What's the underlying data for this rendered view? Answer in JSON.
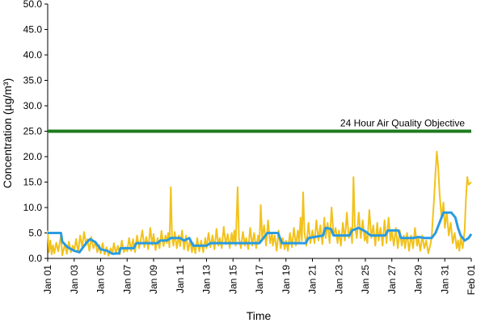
{
  "chart_data": {
    "type": "line",
    "title": "",
    "xlabel": "Time",
    "ylabel": "Concentration (µg/m³)",
    "ylim": [
      0,
      50
    ],
    "yticks": [
      "0.0",
      "5.0",
      "10.0",
      "15.0",
      "20.0",
      "25.0",
      "30.0",
      "35.0",
      "40.0",
      "45.0",
      "50.0"
    ],
    "xlim": [
      "Jan 01",
      "Feb 01"
    ],
    "xticks": [
      "Jan 01",
      "Jan 03",
      "Jan 05",
      "Jan 07",
      "Jan 09",
      "Jan 11",
      "Jan 13",
      "Jan 15",
      "Jan 17",
      "Jan 19",
      "Jan 21",
      "Jan 23",
      "Jan 25",
      "Jan 27",
      "Jan 29",
      "Jan 31",
      "Feb 01"
    ],
    "grid": false,
    "colors": {
      "hourly": "#f2c21b",
      "daily": "#2a9be0",
      "objective": "#1e7a1e"
    },
    "objective": {
      "label": "24 Hour Air Quality Objective",
      "value": 25
    },
    "series": [
      {
        "key": "hourly",
        "points": [
          [
            0,
            5.5
          ],
          [
            0.1,
            1.2
          ],
          [
            0.2,
            3.5
          ],
          [
            0.3,
            0.8
          ],
          [
            0.4,
            2.6
          ],
          [
            0.5,
            1.0
          ],
          [
            0.65,
            3.1
          ],
          [
            0.8,
            1.4
          ],
          [
            1.0,
            4.5
          ],
          [
            1.1,
            0.6
          ],
          [
            1.3,
            2.8
          ],
          [
            1.45,
            0.9
          ],
          [
            1.6,
            3.3
          ],
          [
            1.75,
            1.2
          ],
          [
            1.9,
            2.5
          ],
          [
            2.0,
            1.5
          ],
          [
            2.15,
            3.8
          ],
          [
            2.3,
            1.2
          ],
          [
            2.45,
            4.5
          ],
          [
            2.6,
            2.2
          ],
          [
            2.75,
            5.2
          ],
          [
            2.9,
            2.6
          ],
          [
            3.0,
            3.8
          ],
          [
            3.15,
            1.5
          ],
          [
            3.3,
            4.2
          ],
          [
            3.45,
            2.0
          ],
          [
            3.6,
            3.2
          ],
          [
            3.75,
            1.2
          ],
          [
            3.9,
            2.6
          ],
          [
            4.0,
            1.0
          ],
          [
            4.15,
            3.0
          ],
          [
            4.3,
            0.8
          ],
          [
            4.45,
            2.2
          ],
          [
            4.6,
            0.5
          ],
          [
            4.75,
            2.0
          ],
          [
            4.9,
            1.2
          ],
          [
            5.0,
            3.0
          ],
          [
            5.15,
            1.0
          ],
          [
            5.3,
            2.5
          ],
          [
            5.45,
            0.8
          ],
          [
            5.6,
            3.5
          ],
          [
            5.75,
            1.2
          ],
          [
            5.9,
            2.2
          ],
          [
            6.0,
            1.4
          ],
          [
            6.15,
            4.0
          ],
          [
            6.3,
            1.5
          ],
          [
            6.45,
            3.8
          ],
          [
            6.6,
            1.2
          ],
          [
            6.75,
            4.5
          ],
          [
            6.9,
            2.0
          ],
          [
            7.0,
            3.2
          ],
          [
            7.15,
            5.5
          ],
          [
            7.3,
            2.2
          ],
          [
            7.45,
            4.2
          ],
          [
            7.6,
            1.8
          ],
          [
            7.75,
            6.0
          ],
          [
            7.9,
            2.6
          ],
          [
            8.0,
            4.8
          ],
          [
            8.15,
            1.6
          ],
          [
            8.3,
            4.0
          ],
          [
            8.45,
            2.0
          ],
          [
            8.6,
            5.4
          ],
          [
            8.75,
            2.4
          ],
          [
            8.9,
            4.5
          ],
          [
            9.0,
            3.0
          ],
          [
            9.1,
            5.0
          ],
          [
            9.2,
            2.2
          ],
          [
            9.3,
            14.0
          ],
          [
            9.4,
            4.0
          ],
          [
            9.5,
            2.5
          ],
          [
            9.6,
            5.2
          ],
          [
            9.75,
            2.0
          ],
          [
            9.9,
            4.5
          ],
          [
            10.0,
            2.4
          ],
          [
            10.15,
            5.5
          ],
          [
            10.3,
            1.8
          ],
          [
            10.45,
            4.5
          ],
          [
            10.6,
            1.5
          ],
          [
            10.75,
            3.6
          ],
          [
            10.9,
            1.2
          ],
          [
            11.0,
            3.0
          ],
          [
            11.15,
            1.0
          ],
          [
            11.3,
            4.0
          ],
          [
            11.45,
            1.4
          ],
          [
            11.6,
            3.5
          ],
          [
            11.75,
            1.2
          ],
          [
            11.9,
            4.0
          ],
          [
            12.0,
            2.0
          ],
          [
            12.15,
            5.0
          ],
          [
            12.3,
            2.2
          ],
          [
            12.45,
            4.5
          ],
          [
            12.6,
            1.8
          ],
          [
            12.75,
            5.8
          ],
          [
            12.9,
            2.5
          ],
          [
            13.0,
            4.0
          ],
          [
            13.15,
            2.0
          ],
          [
            13.3,
            6.2
          ],
          [
            13.45,
            2.8
          ],
          [
            13.6,
            4.8
          ],
          [
            13.75,
            2.0
          ],
          [
            13.9,
            5.0
          ],
          [
            14.0,
            3.0
          ],
          [
            14.1,
            5.5
          ],
          [
            14.2,
            2.5
          ],
          [
            14.35,
            14.0
          ],
          [
            14.45,
            4.0
          ],
          [
            14.6,
            2.0
          ],
          [
            14.75,
            5.2
          ],
          [
            14.9,
            2.5
          ],
          [
            15.0,
            4.0
          ],
          [
            15.15,
            1.8
          ],
          [
            15.3,
            6.0
          ],
          [
            15.45,
            2.5
          ],
          [
            15.6,
            5.0
          ],
          [
            15.75,
            2.0
          ],
          [
            15.9,
            4.5
          ],
          [
            16.0,
            3.0
          ],
          [
            16.1,
            10.5
          ],
          [
            16.2,
            4.0
          ],
          [
            16.35,
            6.5
          ],
          [
            16.5,
            2.5
          ],
          [
            16.65,
            7.5
          ],
          [
            16.8,
            3.0
          ],
          [
            16.95,
            5.0
          ],
          [
            17.0,
            2.5
          ],
          [
            17.15,
            4.5
          ],
          [
            17.3,
            1.5
          ],
          [
            17.45,
            5.5
          ],
          [
            17.6,
            2.0
          ],
          [
            17.75,
            4.0
          ],
          [
            17.9,
            1.8
          ],
          [
            18.0,
            3.5
          ],
          [
            18.15,
            1.5
          ],
          [
            18.3,
            5.0
          ],
          [
            18.45,
            2.2
          ],
          [
            18.6,
            6.0
          ],
          [
            18.75,
            2.5
          ],
          [
            18.9,
            5.5
          ],
          [
            19.0,
            3.0
          ],
          [
            19.1,
            8.0
          ],
          [
            19.2,
            3.5
          ],
          [
            19.3,
            13.0
          ],
          [
            19.4,
            5.0
          ],
          [
            19.55,
            2.5
          ],
          [
            19.7,
            7.0
          ],
          [
            19.85,
            3.0
          ],
          [
            20.0,
            5.5
          ],
          [
            20.15,
            3.0
          ],
          [
            20.3,
            7.5
          ],
          [
            20.45,
            3.5
          ],
          [
            20.6,
            6.5
          ],
          [
            20.75,
            2.8
          ],
          [
            20.9,
            8.0
          ],
          [
            21.0,
            4.0
          ],
          [
            21.15,
            7.0
          ],
          [
            21.3,
            3.0
          ],
          [
            21.45,
            10.0
          ],
          [
            21.6,
            4.5
          ],
          [
            21.75,
            6.0
          ],
          [
            21.9,
            3.0
          ],
          [
            22.0,
            5.5
          ],
          [
            22.15,
            2.5
          ],
          [
            22.3,
            7.0
          ],
          [
            22.45,
            3.5
          ],
          [
            22.6,
            9.0
          ],
          [
            22.75,
            4.0
          ],
          [
            22.9,
            6.0
          ],
          [
            23.0,
            3.0
          ],
          [
            23.1,
            16.0
          ],
          [
            23.2,
            6.5
          ],
          [
            23.35,
            4.0
          ],
          [
            23.5,
            9.0
          ],
          [
            23.65,
            4.0
          ],
          [
            23.8,
            7.5
          ],
          [
            23.95,
            3.5
          ],
          [
            24.0,
            5.0
          ],
          [
            24.15,
            3.0
          ],
          [
            24.3,
            9.5
          ],
          [
            24.45,
            4.0
          ],
          [
            24.6,
            6.5
          ],
          [
            24.75,
            2.5
          ],
          [
            24.9,
            7.0
          ],
          [
            25.0,
            3.5
          ],
          [
            25.15,
            6.0
          ],
          [
            25.3,
            2.5
          ],
          [
            25.45,
            7.5
          ],
          [
            25.6,
            3.0
          ],
          [
            25.75,
            8.0
          ],
          [
            25.9,
            3.5
          ],
          [
            26.0,
            5.5
          ],
          [
            26.15,
            2.5
          ],
          [
            26.3,
            6.0
          ],
          [
            26.45,
            2.0
          ],
          [
            26.6,
            5.5
          ],
          [
            26.75,
            2.5
          ],
          [
            26.9,
            4.5
          ],
          [
            27.0,
            2.0
          ],
          [
            27.15,
            5.0
          ],
          [
            27.3,
            1.5
          ],
          [
            27.45,
            4.5
          ],
          [
            27.6,
            2.0
          ],
          [
            27.75,
            6.0
          ],
          [
            27.9,
            2.5
          ],
          [
            28.0,
            4.0
          ],
          [
            28.15,
            1.5
          ],
          [
            28.3,
            4.5
          ],
          [
            28.45,
            2.0
          ],
          [
            28.6,
            3.5
          ],
          [
            28.75,
            1.0
          ],
          [
            28.9,
            2.5
          ],
          [
            29.0,
            4.0
          ],
          [
            29.1,
            8.0
          ],
          [
            29.2,
            12.0
          ],
          [
            29.3,
            17.0
          ],
          [
            29.4,
            21.0
          ],
          [
            29.5,
            18.0
          ],
          [
            29.6,
            13.0
          ],
          [
            29.75,
            8.0
          ],
          [
            29.9,
            11.0
          ],
          [
            30.0,
            6.0
          ],
          [
            30.15,
            9.0
          ],
          [
            30.3,
            4.5
          ],
          [
            30.45,
            7.0
          ],
          [
            30.6,
            3.0
          ],
          [
            30.75,
            5.0
          ],
          [
            30.9,
            2.0
          ],
          [
            31.0,
            3.5
          ],
          [
            31.1,
            1.5
          ],
          [
            31.2,
            4.0
          ],
          [
            31.35,
            2.0
          ],
          [
            31.5,
            5.5
          ],
          [
            31.6,
            12.0
          ],
          [
            31.7,
            16.0
          ],
          [
            31.8,
            14.5
          ],
          [
            32.0,
            15.0
          ]
        ]
      },
      {
        "key": "daily",
        "points": [
          [
            0,
            5.0
          ],
          [
            1.0,
            5.0
          ],
          [
            1.1,
            3.3
          ],
          [
            1.5,
            2.2
          ],
          [
            2.0,
            1.5
          ],
          [
            2.4,
            1.2
          ],
          [
            2.9,
            3.0
          ],
          [
            3.2,
            3.8
          ],
          [
            3.6,
            3.2
          ],
          [
            4.0,
            1.8
          ],
          [
            4.5,
            1.5
          ],
          [
            4.9,
            0.9
          ],
          [
            5.4,
            1.0
          ],
          [
            5.5,
            2.0
          ],
          [
            6.5,
            2.0
          ],
          [
            6.7,
            3.0
          ],
          [
            8.3,
            3.0
          ],
          [
            8.5,
            3.5
          ],
          [
            9.0,
            3.5
          ],
          [
            9.3,
            4.0
          ],
          [
            10.0,
            4.0
          ],
          [
            10.3,
            3.5
          ],
          [
            10.7,
            4.0
          ],
          [
            11.0,
            2.5
          ],
          [
            12.0,
            2.5
          ],
          [
            12.3,
            3.0
          ],
          [
            16.0,
            3.0
          ],
          [
            16.3,
            4.0
          ],
          [
            16.6,
            5.0
          ],
          [
            17.4,
            5.0
          ],
          [
            17.7,
            3.0
          ],
          [
            19.5,
            3.0
          ],
          [
            19.7,
            4.0
          ],
          [
            20.8,
            4.5
          ],
          [
            21.0,
            6.0
          ],
          [
            21.4,
            5.8
          ],
          [
            21.6,
            4.5
          ],
          [
            22.8,
            4.5
          ],
          [
            23.0,
            5.5
          ],
          [
            23.5,
            6.0
          ],
          [
            24.0,
            5.3
          ],
          [
            24.4,
            4.5
          ],
          [
            25.5,
            4.5
          ],
          [
            25.7,
            5.5
          ],
          [
            26.5,
            5.5
          ],
          [
            26.7,
            4.0
          ],
          [
            27.6,
            4.0
          ],
          [
            28.0,
            4.2
          ],
          [
            28.5,
            4.0
          ],
          [
            29.0,
            4.0
          ],
          [
            29.3,
            5.0
          ],
          [
            29.6,
            7.0
          ],
          [
            29.9,
            9.0
          ],
          [
            30.5,
            9.0
          ],
          [
            30.8,
            8.0
          ],
          [
            31.0,
            6.0
          ],
          [
            31.2,
            4.5
          ],
          [
            31.5,
            3.5
          ],
          [
            31.8,
            4.0
          ],
          [
            32.0,
            4.8
          ]
        ]
      }
    ]
  }
}
